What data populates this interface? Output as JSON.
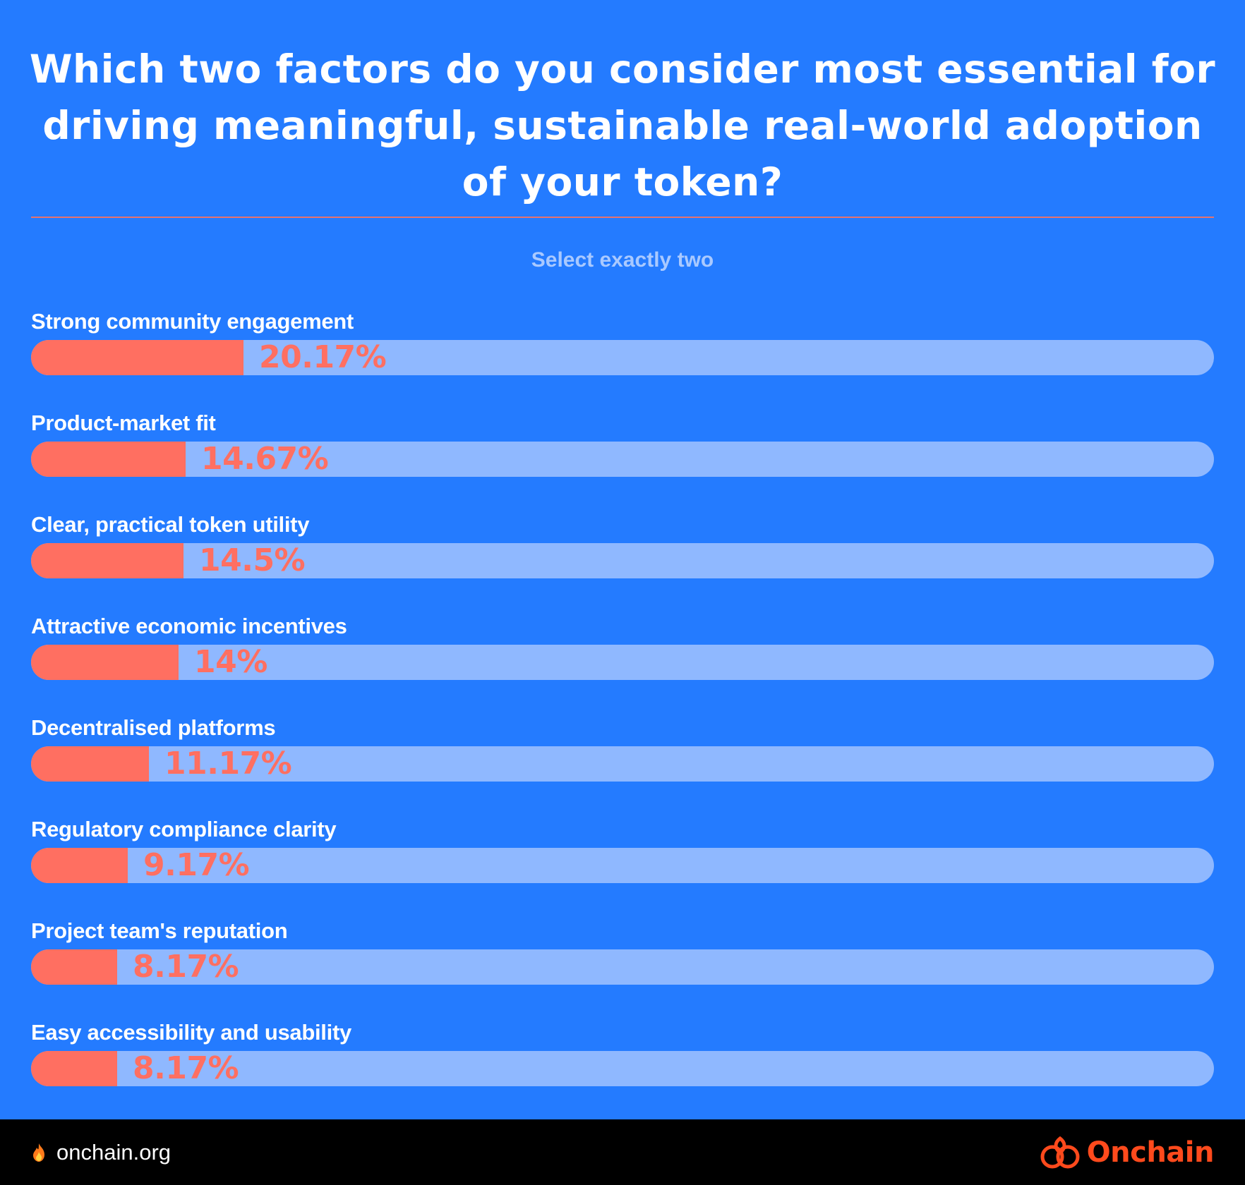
{
  "chart_data": {
    "type": "bar",
    "title": "Which two factors do you consider most essential for driving meaningful, sustainable real-world adoption of your token?",
    "subtitle": "Select exactly two",
    "categories": [
      "Strong community engagement",
      "Product-market fit",
      "Clear, practical token utility",
      "Attractive economic incentives",
      "Decentralised platforms",
      "Regulatory compliance clarity",
      "Project team's reputation",
      "Easy accessibility and usability"
    ],
    "values": [
      20.17,
      14.67,
      14.5,
      14,
      11.17,
      9.17,
      8.17,
      8.17
    ],
    "value_labels": [
      "20.17%",
      "14.67%",
      "14.5%",
      "14%",
      "11.17%",
      "9.17%",
      "8.17%",
      "8.17%"
    ],
    "xlim": [
      0,
      100
    ],
    "orientation": "horizontal"
  },
  "colors": {
    "background": "#247bff",
    "bar_fill": "#ff6f61",
    "bar_track": "#8fb8ff",
    "divider": "#e5736f",
    "brand": "#ff4a1c"
  },
  "footer": {
    "site": "onchain.org",
    "site_icon": "fire-icon",
    "brand": "Onchain",
    "brand_icon": "onchain-logo-icon"
  }
}
